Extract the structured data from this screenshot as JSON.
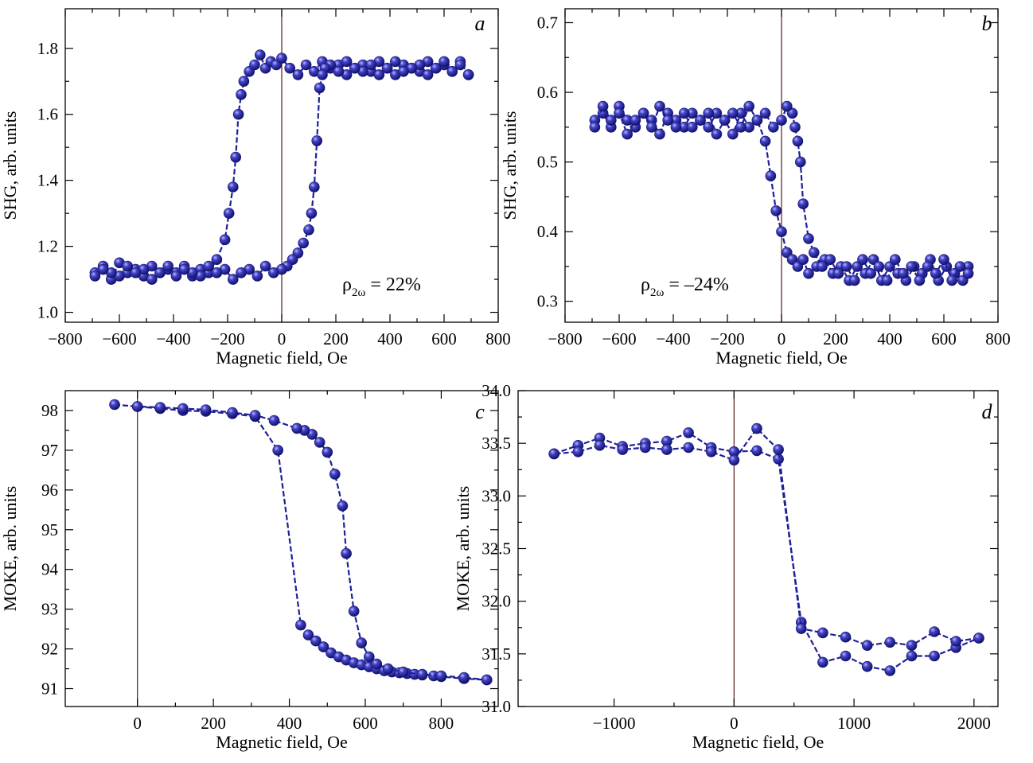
{
  "colors": {
    "series": "#1f1f9a",
    "marker_highlight": "#9a9aff",
    "zero_line": "#5a1a1a"
  },
  "chart_data": [
    {
      "type": "scatter",
      "panel": "a",
      "xlabel": "Magnetic field, Oe",
      "ylabel": "SHG, arb. units",
      "xlim": [
        -800,
        800
      ],
      "ylim": [
        0.97,
        1.92
      ],
      "xticks": [
        -800,
        -600,
        -400,
        -200,
        0,
        200,
        400,
        600,
        800
      ],
      "xtick_labels": [
        "−800",
        "−600",
        "−400",
        "−200",
        "0",
        "200",
        "400",
        "600",
        "800"
      ],
      "yticks": [
        1.0,
        1.2,
        1.4,
        1.6,
        1.8
      ],
      "ytick_labels": [
        "1.0",
        "1.2",
        "1.4",
        "1.6",
        "1.8"
      ],
      "annotation": {
        "symbol": "ρ",
        "sub": "2ω",
        "text": " = 22%"
      },
      "grid": false,
      "series": [
        {
          "x": [
            -690,
            -660,
            -630,
            -600,
            -570,
            -540,
            -510,
            -480,
            -450,
            -420,
            -390,
            -360,
            -330,
            -300,
            -270,
            -240,
            -210,
            -195,
            -180,
            -170,
            -160,
            -150,
            -140,
            -120,
            -100,
            -80,
            -60,
            -40,
            -20,
            0,
            30,
            60,
            90,
            120,
            150,
            180,
            210,
            240,
            270,
            300,
            330,
            360,
            390,
            420,
            450,
            480,
            510,
            540,
            570,
            600,
            630,
            660,
            690
          ],
          "y": [
            1.12,
            1.14,
            1.1,
            1.15,
            1.12,
            1.13,
            1.11,
            1.14,
            1.12,
            1.13,
            1.12,
            1.14,
            1.11,
            1.13,
            1.12,
            1.16,
            1.22,
            1.3,
            1.38,
            1.47,
            1.6,
            1.66,
            1.7,
            1.73,
            1.75,
            1.78,
            1.74,
            1.76,
            1.75,
            1.77,
            1.74,
            1.72,
            1.75,
            1.73,
            1.76,
            1.74,
            1.75,
            1.72,
            1.74,
            1.75,
            1.73,
            1.76,
            1.74,
            1.72,
            1.75,
            1.74,
            1.73,
            1.76,
            1.74,
            1.75,
            1.73,
            1.76,
            1.72
          ]
        },
        {
          "x": [
            690,
            660,
            630,
            600,
            570,
            540,
            510,
            480,
            450,
            420,
            390,
            360,
            330,
            300,
            270,
            240,
            210,
            180,
            160,
            150,
            140,
            130,
            120,
            110,
            100,
            80,
            60,
            40,
            20,
            0,
            -30,
            -60,
            -90,
            -120,
            -150,
            -180,
            -210,
            -240,
            -270,
            -300,
            -330,
            -360,
            -390,
            -420,
            -450,
            -480,
            -510,
            -540,
            -570,
            -600,
            -630,
            -660,
            -690
          ],
          "y": [
            1.72,
            1.75,
            1.73,
            1.76,
            1.74,
            1.72,
            1.75,
            1.74,
            1.73,
            1.76,
            1.74,
            1.72,
            1.75,
            1.73,
            1.74,
            1.76,
            1.73,
            1.75,
            1.74,
            1.72,
            1.68,
            1.52,
            1.38,
            1.3,
            1.25,
            1.21,
            1.18,
            1.16,
            1.14,
            1.13,
            1.12,
            1.14,
            1.11,
            1.13,
            1.12,
            1.1,
            1.13,
            1.12,
            1.14,
            1.11,
            1.12,
            1.13,
            1.11,
            1.14,
            1.12,
            1.1,
            1.13,
            1.12,
            1.14,
            1.11,
            1.12,
            1.13,
            1.11
          ]
        }
      ]
    },
    {
      "type": "scatter",
      "panel": "b",
      "xlabel": "Magnetic field, Oe",
      "ylabel": "SHG, arb. units",
      "xlim": [
        -800,
        800
      ],
      "ylim": [
        0.27,
        0.72
      ],
      "xticks": [
        -800,
        -600,
        -400,
        -200,
        0,
        200,
        400,
        600,
        800
      ],
      "xtick_labels": [
        "−800",
        "−600",
        "−400",
        "−200",
        "0",
        "200",
        "400",
        "600",
        "800"
      ],
      "yticks": [
        0.3,
        0.4,
        0.5,
        0.6,
        0.7
      ],
      "ytick_labels": [
        "0.3",
        "0.4",
        "0.5",
        "0.6",
        "0.7"
      ],
      "annotation": {
        "symbol": "ρ",
        "sub": "2ω",
        "text": " = –24%"
      },
      "grid": false,
      "series": [
        {
          "x": [
            -690,
            -660,
            -630,
            -600,
            -570,
            -540,
            -510,
            -480,
            -450,
            -420,
            -390,
            -360,
            -330,
            -300,
            -270,
            -240,
            -210,
            -180,
            -150,
            -120,
            -90,
            -60,
            -40,
            -20,
            0,
            20,
            40,
            60,
            80,
            100,
            130,
            160,
            190,
            220,
            250,
            280,
            310,
            340,
            370,
            400,
            430,
            460,
            490,
            520,
            550,
            580,
            610,
            640,
            670,
            690
          ],
          "y": [
            0.56,
            0.57,
            0.55,
            0.58,
            0.56,
            0.55,
            0.57,
            0.56,
            0.54,
            0.57,
            0.56,
            0.55,
            0.57,
            0.56,
            0.55,
            0.57,
            0.56,
            0.54,
            0.57,
            0.55,
            0.56,
            0.53,
            0.48,
            0.43,
            0.4,
            0.37,
            0.36,
            0.35,
            0.36,
            0.34,
            0.35,
            0.36,
            0.34,
            0.35,
            0.33,
            0.35,
            0.34,
            0.36,
            0.33,
            0.35,
            0.34,
            0.33,
            0.35,
            0.34,
            0.36,
            0.33,
            0.35,
            0.34,
            0.33,
            0.35
          ]
        },
        {
          "x": [
            690,
            660,
            630,
            600,
            570,
            540,
            510,
            480,
            450,
            420,
            390,
            360,
            330,
            300,
            270,
            240,
            210,
            180,
            150,
            120,
            100,
            80,
            70,
            60,
            50,
            40,
            20,
            0,
            -30,
            -60,
            -90,
            -120,
            -150,
            -180,
            -210,
            -240,
            -270,
            -300,
            -330,
            -360,
            -390,
            -420,
            -450,
            -480,
            -510,
            -540,
            -570,
            -600,
            -630,
            -660,
            -690
          ],
          "y": [
            0.34,
            0.35,
            0.33,
            0.36,
            0.34,
            0.35,
            0.33,
            0.35,
            0.34,
            0.36,
            0.33,
            0.35,
            0.34,
            0.36,
            0.33,
            0.35,
            0.34,
            0.36,
            0.35,
            0.37,
            0.39,
            0.44,
            0.5,
            0.53,
            0.55,
            0.57,
            0.58,
            0.56,
            0.55,
            0.57,
            0.56,
            0.58,
            0.55,
            0.57,
            0.56,
            0.54,
            0.57,
            0.56,
            0.55,
            0.57,
            0.55,
            0.56,
            0.58,
            0.55,
            0.57,
            0.56,
            0.54,
            0.57,
            0.56,
            0.58,
            0.55
          ]
        }
      ]
    },
    {
      "type": "line",
      "panel": "c",
      "xlabel": "Magnetic field, Oe",
      "ylabel": "MOKE, arb. units",
      "xlim": [
        -190,
        950
      ],
      "ylim": [
        90.55,
        98.5
      ],
      "xticks": [
        0,
        200,
        400,
        600,
        800
      ],
      "xtick_labels": [
        "0",
        "200",
        "400",
        "600",
        "800"
      ],
      "yticks": [
        91,
        92,
        93,
        94,
        95,
        96,
        97,
        98
      ],
      "ytick_labels": [
        "91",
        "92",
        "93",
        "94",
        "95",
        "96",
        "97",
        "98"
      ],
      "grid": false,
      "series": [
        {
          "x": [
            -60,
            0,
            60,
            120,
            180,
            250,
            310,
            370,
            430,
            450,
            470,
            490,
            510,
            530,
            550,
            570,
            590,
            610,
            630,
            650,
            670,
            690,
            710,
            730,
            750,
            780,
            800,
            860,
            920
          ],
          "y": [
            98.15,
            98.1,
            98.05,
            98.0,
            97.98,
            97.92,
            97.85,
            97.0,
            92.6,
            92.35,
            92.2,
            92.05,
            91.9,
            91.8,
            91.72,
            91.65,
            91.6,
            91.55,
            91.5,
            91.45,
            91.42,
            91.4,
            91.38,
            91.36,
            91.34,
            91.32,
            91.3,
            91.25,
            91.22
          ]
        },
        {
          "x": [
            920,
            860,
            800,
            750,
            700,
            660,
            630,
            610,
            590,
            570,
            550,
            540,
            520,
            500,
            480,
            460,
            440,
            420,
            360,
            310,
            250,
            180,
            120,
            60,
            0
          ],
          "y": [
            91.22,
            91.28,
            91.32,
            91.36,
            91.42,
            91.5,
            91.62,
            91.8,
            92.15,
            92.95,
            94.4,
            95.6,
            96.4,
            96.95,
            97.2,
            97.4,
            97.5,
            97.55,
            97.75,
            97.88,
            97.95,
            98.02,
            98.05,
            98.08,
            98.1
          ]
        }
      ]
    },
    {
      "type": "line",
      "panel": "d",
      "xlabel": "Magnetic field, Oe",
      "ylabel": "MOKE, arb. units",
      "xlim": [
        -1800,
        2200
      ],
      "ylim": [
        31.0,
        34.0
      ],
      "xticks": [
        -1000,
        0,
        1000,
        2000
      ],
      "xtick_labels": [
        "−1000",
        "0",
        "1000",
        "2000"
      ],
      "yticks": [
        31.0,
        31.5,
        32.0,
        32.5,
        33.0,
        33.5,
        34.0
      ],
      "ytick_labels": [
        "31.0",
        "31.5",
        "32.0",
        "32.5",
        "33.0",
        "33.5",
        "34.0"
      ],
      "grid": false,
      "series": [
        {
          "x": [
            -1500,
            -1300,
            -1120,
            -930,
            -740,
            -560,
            -380,
            -190,
            0,
            190,
            370,
            560,
            740,
            930,
            1110,
            1300,
            1480,
            1670,
            1850,
            2040
          ],
          "y": [
            33.4,
            33.48,
            33.55,
            33.47,
            33.5,
            33.52,
            33.6,
            33.46,
            33.42,
            33.43,
            33.35,
            31.8,
            31.42,
            31.48,
            31.38,
            31.34,
            31.48,
            31.48,
            31.56,
            31.65
          ]
        },
        {
          "x": [
            2040,
            1850,
            1670,
            1480,
            1300,
            1110,
            930,
            740,
            560,
            370,
            190,
            0,
            -190,
            -380,
            -560,
            -740,
            -930,
            -1120,
            -1300,
            -1500
          ],
          "y": [
            31.65,
            31.62,
            31.71,
            31.58,
            31.61,
            31.58,
            31.66,
            31.7,
            31.74,
            33.44,
            33.64,
            33.34,
            33.42,
            33.46,
            33.44,
            33.46,
            33.44,
            33.48,
            33.42,
            33.4
          ]
        }
      ]
    }
  ]
}
